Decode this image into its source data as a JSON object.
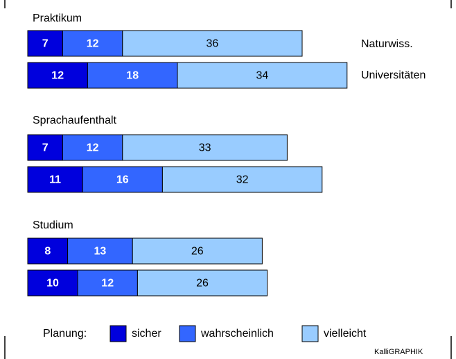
{
  "chart_data": {
    "type": "bar",
    "orientation": "horizontal",
    "stacked": true,
    "groups": [
      "Praktikum",
      "Sprachaufenthalt",
      "Studium"
    ],
    "categories": [
      "Naturwiss.",
      "Universitäten"
    ],
    "series": [
      {
        "name": "sicher",
        "color": "#0000dd",
        "values": [
          [
            7,
            12
          ],
          [
            7,
            11
          ],
          [
            8,
            10
          ]
        ]
      },
      {
        "name": "wahrscheinlich",
        "color": "#3366ff",
        "values": [
          [
            12,
            18
          ],
          [
            12,
            16
          ],
          [
            13,
            12
          ]
        ]
      },
      {
        "name": "vielleicht",
        "color": "#99ccff",
        "values": [
          [
            36,
            34
          ],
          [
            33,
            32
          ],
          [
            26,
            26
          ]
        ]
      }
    ],
    "legend_title": "Planung:",
    "credit": "KalliGRAPHIK"
  }
}
